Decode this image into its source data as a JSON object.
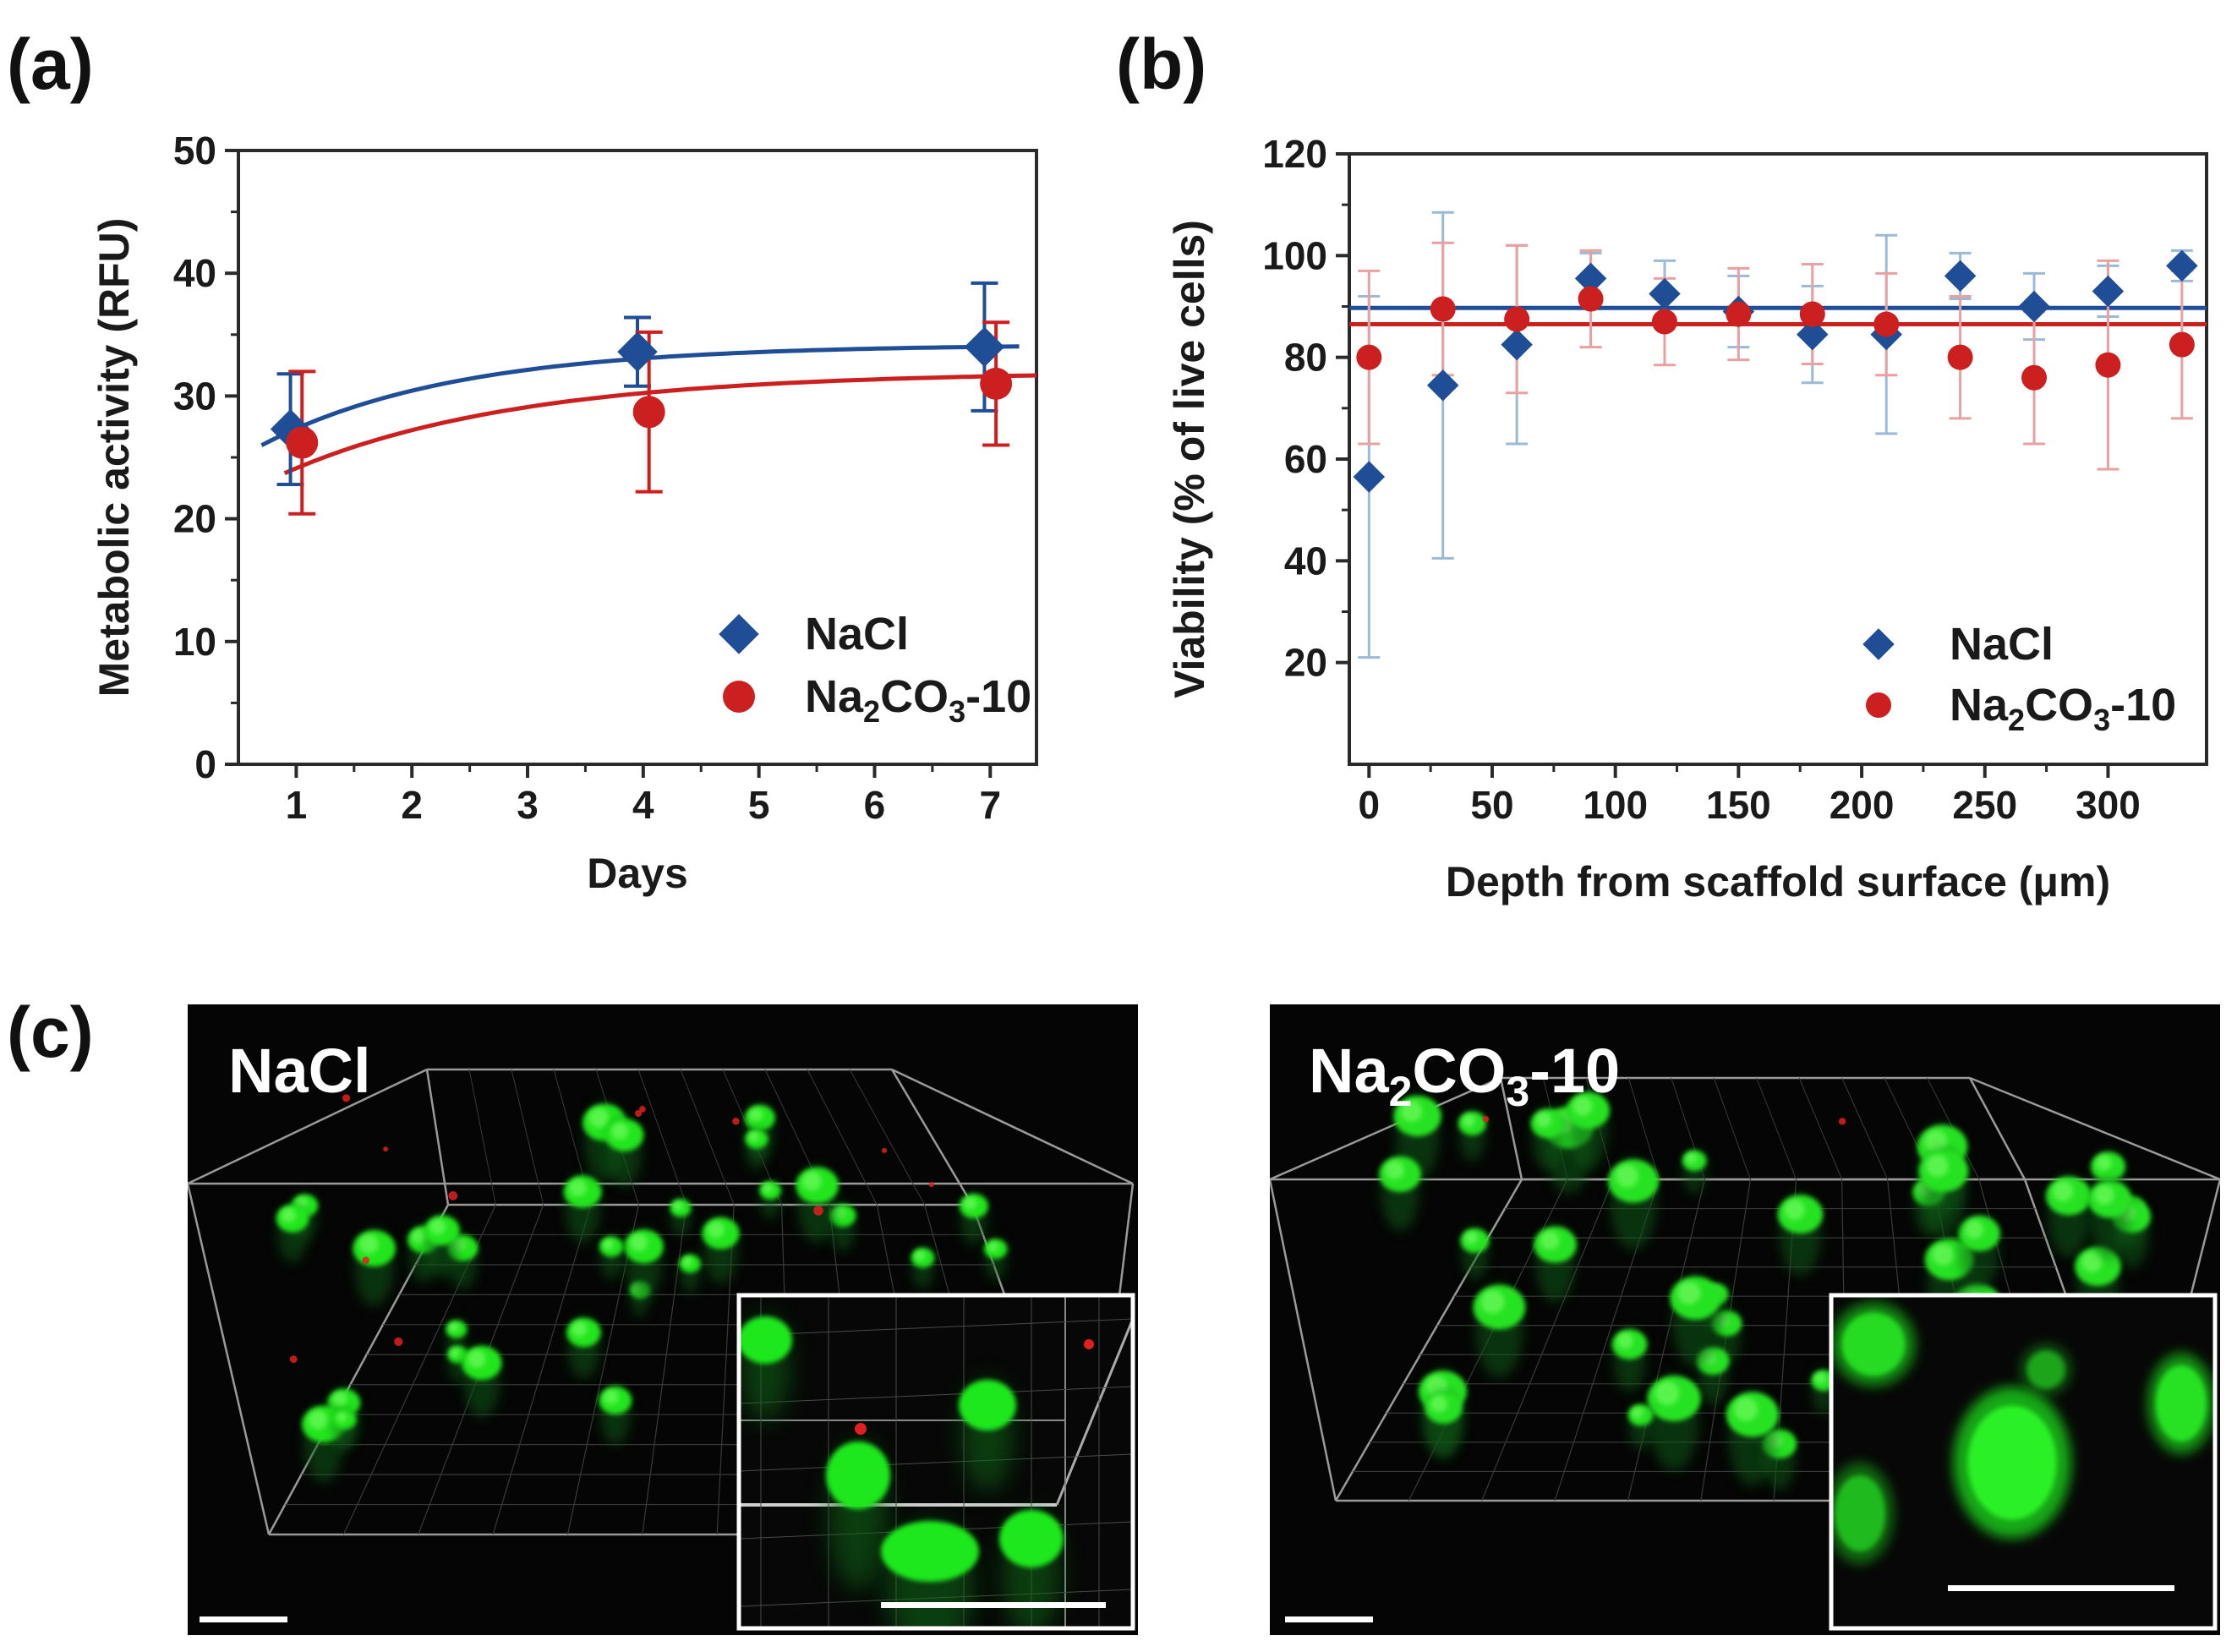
{
  "panels": {
    "a": {
      "label": "(a)"
    },
    "b": {
      "label": "(b)"
    },
    "c": {
      "label": "(c)"
    }
  },
  "colors": {
    "nacl": "#1f4e96",
    "na2co3": "#cc1f1f",
    "na2co3_light": "#e8a0a0",
    "nacl_light": "#9bbad6"
  },
  "images": {
    "left": {
      "label": "NaCl"
    },
    "right": {
      "label_prefix": "Na",
      "label_sub1": "2",
      "label_mid": "CO",
      "label_sub2": "3",
      "label_suffix": "-10"
    }
  },
  "chart_data": [
    {
      "panel": "a",
      "type": "scatter",
      "title": "",
      "xlabel": "Days",
      "ylabel": "Metabolic activity (RFU)",
      "xlim": [
        0.5,
        7.4
      ],
      "ylim": [
        0,
        50
      ],
      "xticks": [
        1,
        2,
        3,
        4,
        5,
        6,
        7
      ],
      "yticks": [
        0,
        10,
        20,
        30,
        40,
        50
      ],
      "legend_position": "bottom-right",
      "series": [
        {
          "name": "NaCl",
          "marker": "diamond",
          "x": [
            0.95,
            3.95,
            6.95
          ],
          "y": [
            27.3,
            33.6,
            34.0
          ],
          "err": [
            4.5,
            2.8,
            5.2
          ],
          "fit": {
            "model": "plateau",
            "a": 34.2,
            "b": 12.5,
            "k": 0.6,
            "x_start": 0.7,
            "x_end": 7.25
          }
        },
        {
          "name": "Na2CO3-10",
          "legend_parts": [
            "Na",
            "2",
            "CO",
            "3",
            "-10"
          ],
          "marker": "circle",
          "x": [
            1.05,
            4.05,
            7.05
          ],
          "y": [
            26.2,
            28.7,
            31.0
          ],
          "err": [
            5.8,
            6.5,
            5.0
          ],
          "fit": {
            "model": "plateau",
            "a": 32.0,
            "b": 13.0,
            "k": 0.5,
            "x_start": 0.9,
            "x_end": 7.4
          }
        }
      ]
    },
    {
      "panel": "b",
      "type": "scatter",
      "title": "",
      "xlabel": "Depth from scaffold surface (μm)",
      "ylabel": "Viability (% of live cells)",
      "xlim": [
        -8,
        340
      ],
      "ylim": [
        0,
        120
      ],
      "xticks": [
        0,
        50,
        100,
        150,
        200,
        250,
        300
      ],
      "yticks": [
        20,
        40,
        60,
        80,
        100,
        120
      ],
      "legend_position": "bottom-right",
      "series": [
        {
          "name": "NaCl",
          "marker": "diamond",
          "x": [
            0,
            30,
            60,
            90,
            120,
            150,
            180,
            210,
            240,
            270,
            300,
            330
          ],
          "y": [
            56.5,
            74.5,
            82.5,
            95.5,
            92.5,
            89.0,
            84.5,
            84.5,
            96.0,
            90.0,
            93.0,
            98.0
          ],
          "err": [
            35.5,
            34.0,
            19.5,
            5.0,
            6.5,
            7.0,
            9.5,
            19.5,
            4.5,
            6.5,
            5.0,
            3.0
          ],
          "fit": {
            "model": "constant",
            "value": 89.7
          }
        },
        {
          "name": "Na2CO3-10",
          "legend_parts": [
            "Na",
            "2",
            "CO",
            "3",
            "-10"
          ],
          "marker": "circle",
          "x": [
            0,
            30,
            60,
            90,
            120,
            150,
            180,
            210,
            240,
            270,
            300,
            330
          ],
          "y": [
            80.0,
            89.5,
            87.5,
            91.5,
            87.0,
            88.5,
            88.5,
            86.5,
            80.0,
            76.0,
            78.5,
            82.5
          ],
          "err": [
            17.0,
            13.0,
            14.5,
            9.5,
            8.5,
            9.0,
            9.8,
            10.0,
            12.0,
            13.0,
            20.5,
            14.5
          ],
          "fit": {
            "model": "constant",
            "value": 86.5
          }
        }
      ]
    }
  ]
}
